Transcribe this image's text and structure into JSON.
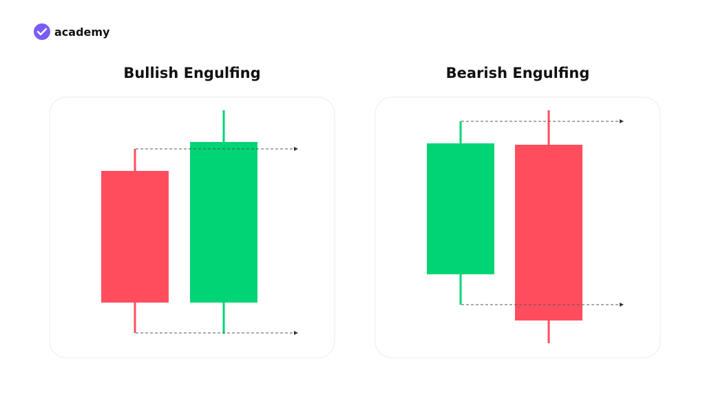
{
  "logo": {
    "text": "academy"
  },
  "panels": [
    {
      "title": "Bullish Engulfing"
    },
    {
      "title": "Bearish Engulfing"
    }
  ]
}
